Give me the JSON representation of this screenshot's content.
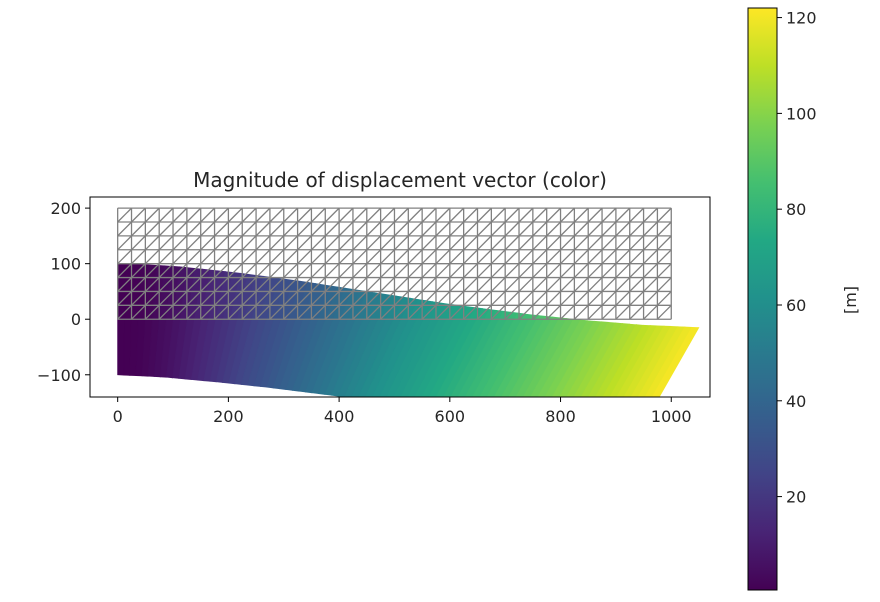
{
  "chart_data": {
    "type": "heatmap",
    "title": "Magnitude of displacement vector (color)",
    "xlabel": "",
    "ylabel": "",
    "xlim": [
      -50,
      1070
    ],
    "ylim": [
      -140,
      220
    ],
    "xticks": [
      0,
      200,
      400,
      600,
      800,
      1000
    ],
    "xtick_labels": [
      "0",
      "200",
      "400",
      "600",
      "800",
      "1000"
    ],
    "yticks": [
      -100,
      0,
      100,
      200
    ],
    "ytick_labels": [
      "−100",
      "0",
      "100",
      "200"
    ],
    "undeformed_mesh": {
      "x_range": [
        0,
        1000
      ],
      "y_range": [
        0,
        200
      ],
      "nx": 40,
      "ny": 8,
      "color": "#808080"
    },
    "deformed_shape": {
      "x": [
        0,
        50,
        100,
        150,
        200,
        250,
        300,
        350,
        400,
        450,
        500,
        550,
        600,
        650,
        700,
        750,
        800,
        850,
        900,
        950,
        1000
      ],
      "centerline_shift": [
        0,
        -2,
        -5,
        -10,
        -15,
        -21,
        -27,
        -34,
        -41,
        -48,
        -55,
        -62,
        -68,
        -74,
        -80,
        -85,
        -90,
        -94,
        -98,
        -100,
        -102
      ],
      "rotation": [
        0,
        -0.06,
        -0.12,
        -0.17,
        -0.22,
        -0.27,
        -0.31,
        -0.35,
        -0.38,
        -0.41,
        -0.44,
        -0.46,
        -0.48,
        -0.49,
        -0.5,
        -0.505,
        -0.51,
        -0.51,
        -0.515,
        -0.515,
        -0.52
      ],
      "magnitude": [
        0,
        1.5,
        6,
        12,
        19,
        26,
        33,
        40,
        47,
        54,
        61,
        67,
        73,
        79,
        85,
        91,
        97,
        103,
        109,
        115,
        121
      ]
    },
    "colorbar": {
      "label": "[m]",
      "range": [
        0.5,
        122
      ],
      "ticks": [
        20,
        40,
        60,
        80,
        100,
        120
      ],
      "tick_labels": [
        "20",
        "40",
        "60",
        "80",
        "100",
        "120"
      ],
      "colormap": "viridis"
    }
  }
}
